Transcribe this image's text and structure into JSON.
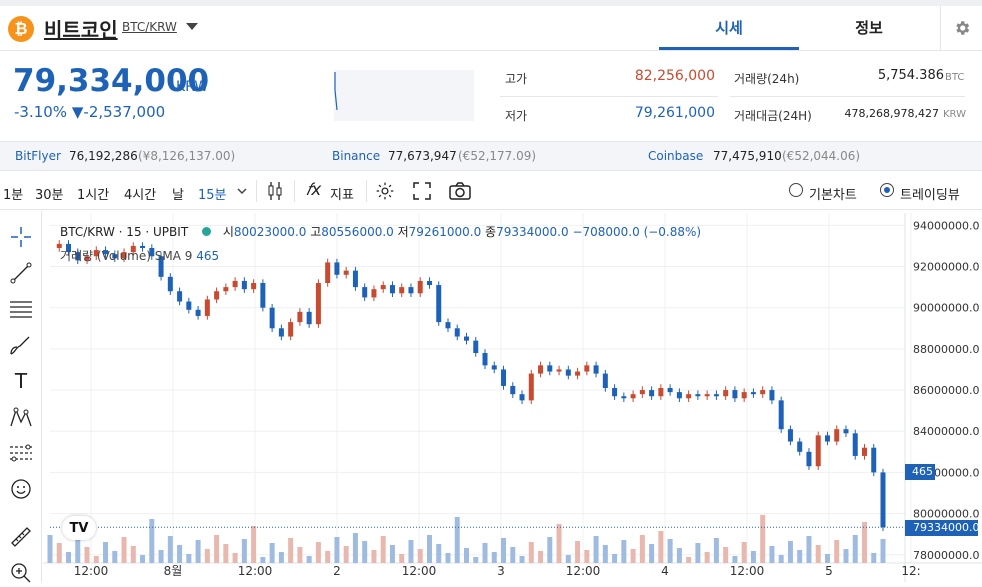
{
  "coin": {
    "icon_glyph": "₿",
    "name": "비트코인",
    "pair": "BTC/KRW"
  },
  "tabs": {
    "quote": "시세",
    "info": "정보"
  },
  "price": {
    "current": "79,334,000",
    "unit": "KRW",
    "change_pct": "-3.10%",
    "change_arrow": "▼",
    "change_abs": "-2,537,000"
  },
  "stats": {
    "high_label": "고가",
    "high_value": "82,256,000",
    "low_label": "저가",
    "low_value": "79,261,000",
    "volume_label": "거래량(24h)",
    "volume_value": "5,754.386",
    "volume_unit": "BTC",
    "amount_label": "거래대금(24H)",
    "amount_value": "478,268,978,427",
    "amount_unit": "KRW"
  },
  "exchanges": [
    {
      "name": "BitFlyer",
      "price": "76,192,286",
      "sub": "(¥8,126,137.00)"
    },
    {
      "name": "Binance",
      "price": "77,673,947",
      "sub": "(€52,177.09)"
    },
    {
      "name": "Coinbase",
      "price": "77,475,910",
      "sub": "(€52,044.06)"
    }
  ],
  "toolbar": {
    "intervals": [
      "1분",
      "30분",
      "1시간",
      "4시간",
      "날",
      "15분"
    ],
    "indicator_label": "지표",
    "chart_type_basic": "기본차트",
    "chart_type_tv": "트레이딩뷰"
  },
  "legend": {
    "symbol": "BTC/KRW · 15 · UPBIT",
    "o_label": "시",
    "o_value": "80023000.0",
    "h_label": "고",
    "h_value": "80556000.0",
    "l_label": "저",
    "l_value": "79261000.0",
    "c_label": "종",
    "c_value": "79334000.0",
    "change": "−708000.0 (−0.88%)",
    "volume_label": "거래량 (Volume) SMA 9",
    "volume_value": "465"
  },
  "price_axis_labels": [
    "94000000.0",
    "92000000.0",
    "90000000.0",
    "88000000.0",
    "86000000.0",
    "84000000.0",
    "82000000.0",
    "80000000.0",
    "78000000.0"
  ],
  "time_axis_labels": [
    "12:00",
    "8월",
    "12:00",
    "2",
    "12:00",
    "3",
    "12:00",
    "4",
    "12:00",
    "5",
    "12:"
  ],
  "markers": {
    "volume_tag": "465",
    "last_price_tag": "79334000.0"
  },
  "colors": {
    "accent": "#1d62b7",
    "down": "#1d62b7",
    "up": "#c84a31",
    "coin": "#f7931a"
  },
  "chart_data": {
    "type": "line",
    "symbol": "BTC/KRW · 15 · UPBIT",
    "x_ticks": [
      "12:00",
      "8월",
      "12:00",
      "2",
      "12:00",
      "3",
      "12:00",
      "4",
      "12:00",
      "5",
      "12:"
    ],
    "y_ticks": [
      94000000,
      92000000,
      90000000,
      88000000,
      86000000,
      84000000,
      82000000,
      80000000,
      78000000
    ],
    "ylim": [
      77600000,
      94600000
    ],
    "close_series": [
      92900000,
      93100000,
      92700000,
      92300000,
      92500000,
      92800000,
      92600000,
      92400000,
      92700000,
      93000000,
      92900000,
      92500000,
      91500000,
      90800000,
      90300000,
      89900000,
      89600000,
      90400000,
      90800000,
      91000000,
      91300000,
      90900000,
      91200000,
      90000000,
      89000000,
      88600000,
      89300000,
      89800000,
      89200000,
      91200000,
      92200000,
      91600000,
      91800000,
      91000000,
      90500000,
      90900000,
      91100000,
      90700000,
      91000000,
      90700000,
      91300000,
      91100000,
      89300000,
      89000000,
      88600000,
      88400000,
      87800000,
      87200000,
      87000000,
      86200000,
      85800000,
      85500000,
      86800000,
      87200000,
      86900000,
      87000000,
      86700000,
      86900000,
      87200000,
      86800000,
      86100000,
      85700000,
      85600000,
      85800000,
      86000000,
      85700000,
      86100000,
      85900000,
      85600000,
      85800000,
      85700000,
      85800000,
      85700000,
      86000000,
      85600000,
      85900000,
      85800000,
      86000000,
      85500000,
      84100000,
      83500000,
      83000000,
      82300000,
      83800000,
      83500000,
      84100000,
      83900000,
      82800000,
      83200000,
      82000000,
      79334000
    ],
    "last_price": 79334000,
    "last_volume": 465
  }
}
